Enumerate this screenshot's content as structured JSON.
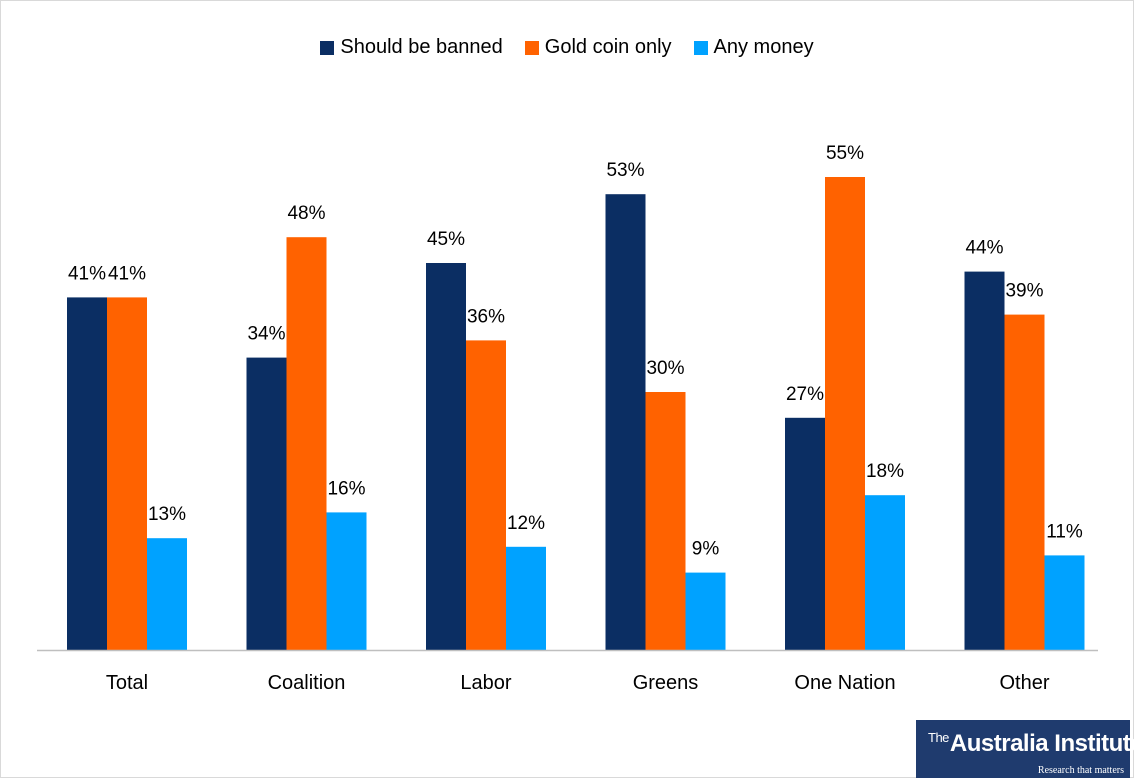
{
  "colors": {
    "should_be_banned": "#0b2e63",
    "gold_coin_only": "#ff6200",
    "any_money": "#00a2ff",
    "axis": "#bfbfbf"
  },
  "chart_data": {
    "type": "bar",
    "categories": [
      "Total",
      "Coalition",
      "Labor",
      "Greens",
      "One Nation",
      "Other"
    ],
    "series": [
      {
        "name": "Should be banned",
        "values": [
          41,
          34,
          45,
          53,
          27,
          44
        ],
        "labels": [
          "41%",
          "34%",
          "45%",
          "53%",
          "27%",
          "44%"
        ]
      },
      {
        "name": "Gold coin only",
        "values": [
          41,
          48,
          36,
          30,
          55,
          39
        ],
        "labels": [
          "41%",
          "48%",
          "36%",
          "30%",
          "55%",
          "39%"
        ]
      },
      {
        "name": "Any money",
        "values": [
          13,
          16,
          12,
          9,
          18,
          11
        ],
        "labels": [
          "13%",
          "16%",
          "12%",
          "9%",
          "18%",
          "11%"
        ]
      }
    ],
    "ylim": [
      0,
      60
    ],
    "grid": false,
    "legend_position": "top-center"
  },
  "logo": {
    "the": "The",
    "name": "Australia Institute",
    "tagline": "Research that matters"
  }
}
